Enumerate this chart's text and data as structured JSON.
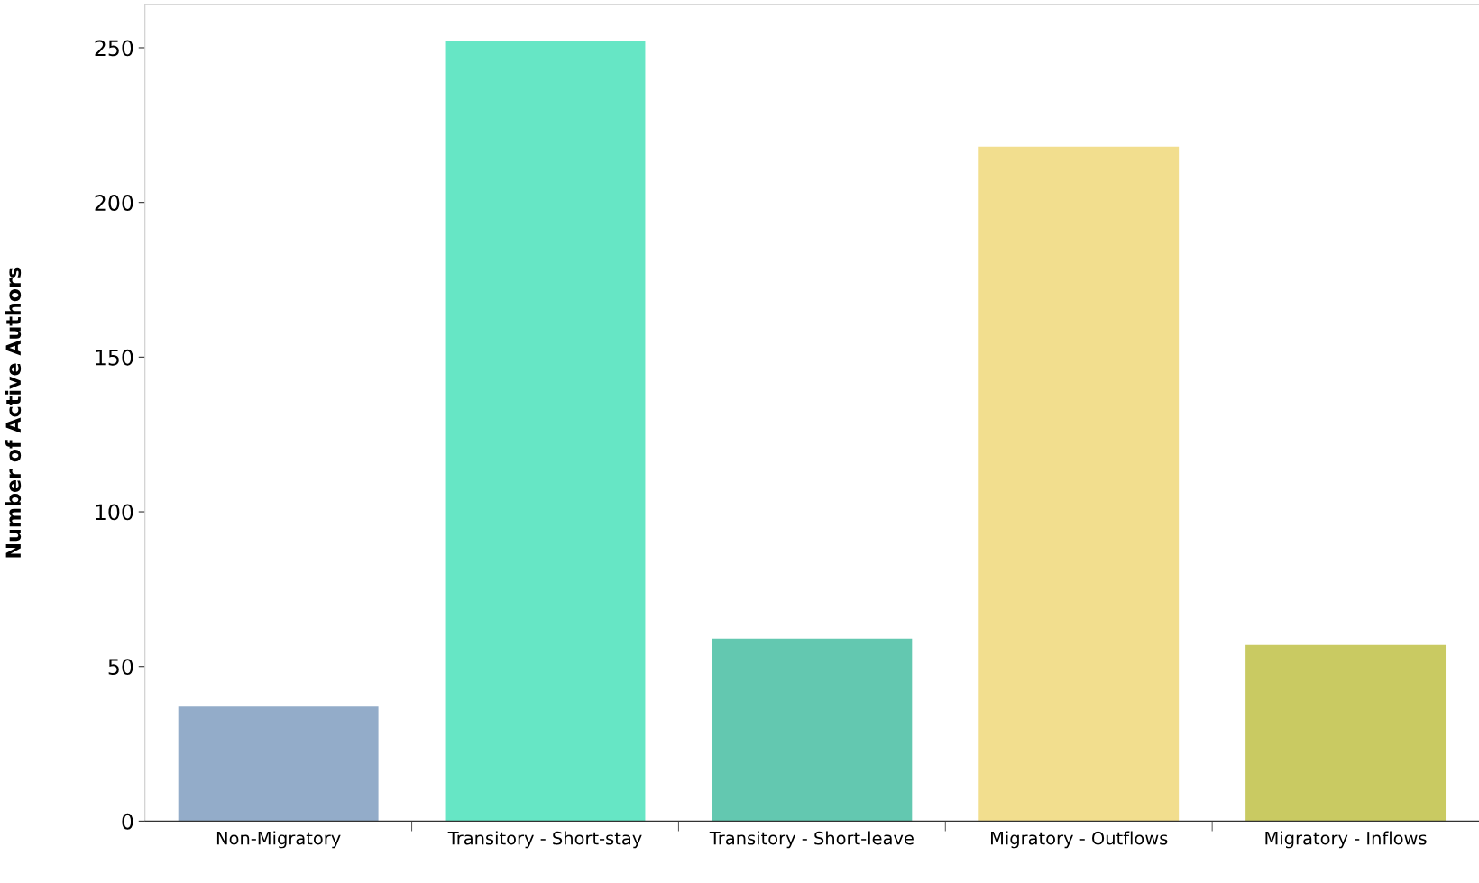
{
  "chart_data": {
    "type": "bar",
    "ylabel": "Number of Active Authors",
    "categories": [
      "Non-Migratory",
      "Transitory - Short-stay",
      "Transitory - Short-leave",
      "Migratory - Outflows",
      "Migratory - Inflows"
    ],
    "values": [
      37,
      252,
      59,
      218,
      57
    ],
    "colors": [
      "#93acc9",
      "#66e6c5",
      "#63c8b0",
      "#f2de8e",
      "#c9ca62"
    ],
    "ylim": [
      0,
      264
    ],
    "yticks": [
      0,
      50,
      100,
      150,
      200,
      250
    ],
    "grid": false
  }
}
